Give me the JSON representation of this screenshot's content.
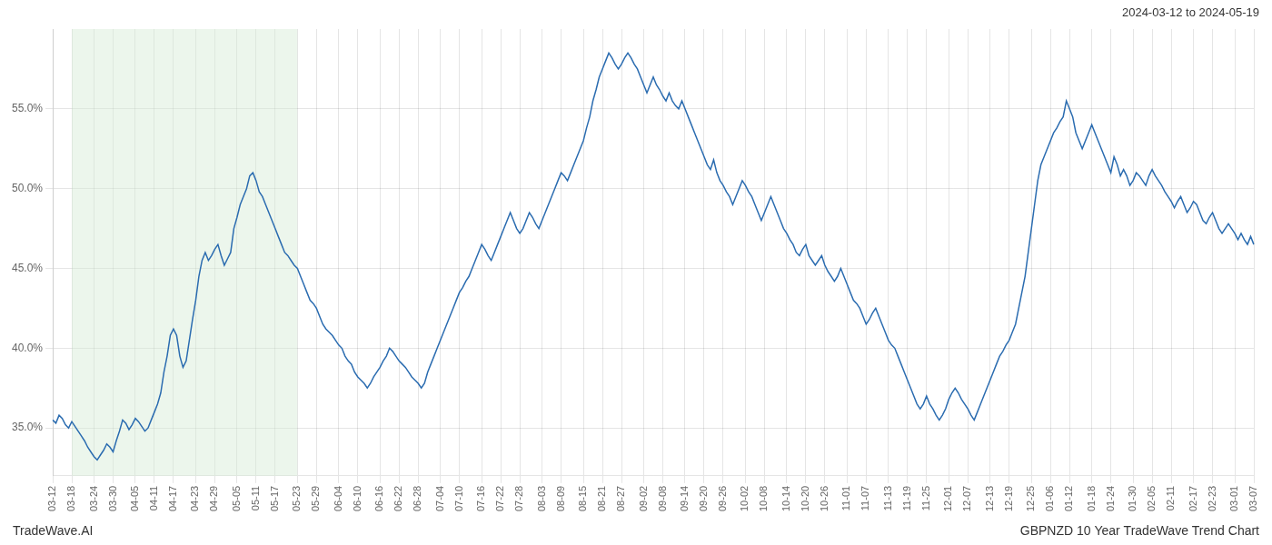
{
  "chart_data": {
    "type": "line",
    "title": "GBPNZD 10 Year TradeWave Trend Chart",
    "subtitle": "2024-03-12 to 2024-05-19",
    "annotations": [
      "TradeWave.AI"
    ],
    "color": "#2b6cb0",
    "grid": true,
    "span": {
      "from": "03-18",
      "to": "05-23",
      "color": "#d4ead4"
    },
    "ylim": [
      32.0,
      60.0
    ],
    "yticks": [
      {
        "value": 35.0,
        "label": "35.0%"
      },
      {
        "value": 40.0,
        "label": "40.0%"
      },
      {
        "value": 45.0,
        "label": "45.0%"
      },
      {
        "value": 50.0,
        "label": "50.0%"
      },
      {
        "value": 55.0,
        "label": "55.0%"
      }
    ],
    "categories": [
      "03-12",
      null,
      null,
      null,
      null,
      null,
      "03-18",
      null,
      null,
      null,
      null,
      null,
      null,
      "03-24",
      null,
      null,
      null,
      null,
      null,
      "03-30",
      null,
      null,
      null,
      null,
      null,
      null,
      "04-05",
      null,
      null,
      null,
      null,
      null,
      "04-11",
      null,
      null,
      null,
      null,
      null,
      "04-17",
      null,
      null,
      null,
      null,
      null,
      null,
      "04-23",
      null,
      null,
      null,
      null,
      null,
      "04-29",
      null,
      null,
      null,
      null,
      null,
      null,
      "05-05",
      null,
      null,
      null,
      null,
      null,
      "05-11",
      null,
      null,
      null,
      null,
      null,
      "05-17",
      null,
      null,
      null,
      null,
      null,
      null,
      "05-23",
      null,
      null,
      null,
      null,
      null,
      "05-29",
      null,
      null,
      null,
      null,
      null,
      null,
      "06-04",
      null,
      null,
      null,
      null,
      null,
      "06-10",
      null,
      null,
      null,
      null,
      null,
      null,
      "06-16",
      null,
      null,
      null,
      null,
      null,
      "06-22",
      null,
      null,
      null,
      null,
      null,
      "06-28",
      null,
      null,
      null,
      null,
      null,
      null,
      "07-04",
      null,
      null,
      null,
      null,
      null,
      "07-10",
      null,
      null,
      null,
      null,
      null,
      null,
      "07-16",
      null,
      null,
      null,
      null,
      null,
      "07-22",
      null,
      null,
      null,
      null,
      null,
      "07-28",
      null,
      null,
      null,
      null,
      null,
      null,
      "08-03",
      null,
      null,
      null,
      null,
      null,
      "08-09",
      null,
      null,
      null,
      null,
      null,
      null,
      "08-15",
      null,
      null,
      null,
      null,
      null,
      "08-21",
      null,
      null,
      null,
      null,
      null,
      "08-27",
      null,
      null,
      null,
      null,
      null,
      null,
      "09-02",
      null,
      null,
      null,
      null,
      null,
      "09-08",
      null,
      null,
      null,
      null,
      null,
      null,
      "09-14",
      null,
      null,
      null,
      null,
      null,
      "09-20",
      null,
      null,
      null,
      null,
      null,
      "09-26",
      null,
      null,
      null,
      null,
      null,
      null,
      "10-02",
      null,
      null,
      null,
      null,
      null,
      "10-08",
      null,
      null,
      null,
      null,
      null,
      null,
      "10-14",
      null,
      null,
      null,
      null,
      null,
      "10-20",
      null,
      null,
      null,
      null,
      null,
      "10-26",
      null,
      null,
      null,
      null,
      null,
      null,
      "11-01",
      null,
      null,
      null,
      null,
      null,
      "11-07",
      null,
      null,
      null,
      null,
      null,
      null,
      "11-13",
      null,
      null,
      null,
      null,
      null,
      "11-19",
      null,
      null,
      null,
      null,
      null,
      "11-25",
      null,
      null,
      null,
      null,
      null,
      null,
      "12-01",
      null,
      null,
      null,
      null,
      null,
      "12-07",
      null,
      null,
      null,
      null,
      null,
      null,
      "12-13",
      null,
      null,
      null,
      null,
      null,
      "12-19",
      null,
      null,
      null,
      null,
      null,
      null,
      "12-25",
      null,
      null,
      null,
      null,
      null,
      "01-06",
      null,
      null,
      null,
      null,
      null,
      "01-12",
      null,
      null,
      null,
      null,
      null,
      null,
      "01-18",
      null,
      null,
      null,
      null,
      null,
      "01-24",
      null,
      null,
      null,
      null,
      null,
      null,
      "01-30",
      null,
      null,
      null,
      null,
      null,
      "02-05",
      null,
      null,
      null,
      null,
      null,
      "02-11",
      null,
      null,
      null,
      null,
      null,
      null,
      "02-17",
      null,
      null,
      null,
      null,
      null,
      "02-23",
      null,
      null,
      null,
      null,
      null,
      null,
      "03-01",
      null,
      null,
      null,
      null,
      null,
      "03-07"
    ],
    "values": [
      35.5,
      35.3,
      35.8,
      35.6,
      35.2,
      35.0,
      35.4,
      35.1,
      34.8,
      34.5,
      34.2,
      33.8,
      33.5,
      33.2,
      33.0,
      33.3,
      33.6,
      34.0,
      33.8,
      33.5,
      34.2,
      34.8,
      35.5,
      35.3,
      34.9,
      35.2,
      35.6,
      35.4,
      35.1,
      34.8,
      35.0,
      35.5,
      36.0,
      36.5,
      37.2,
      38.5,
      39.5,
      40.8,
      41.2,
      40.8,
      39.5,
      38.8,
      39.2,
      40.5,
      41.8,
      43.0,
      44.5,
      45.5,
      46.0,
      45.5,
      45.8,
      46.2,
      46.5,
      45.8,
      45.2,
      45.6,
      46.0,
      47.5,
      48.2,
      49.0,
      49.5,
      50.0,
      50.8,
      51.0,
      50.5,
      49.8,
      49.5,
      49.0,
      48.5,
      48.0,
      47.5,
      47.0,
      46.5,
      46.0,
      45.8,
      45.5,
      45.2,
      45.0,
      44.5,
      44.0,
      43.5,
      43.0,
      42.8,
      42.5,
      42.0,
      41.5,
      41.2,
      41.0,
      40.8,
      40.5,
      40.2,
      40.0,
      39.5,
      39.2,
      39.0,
      38.5,
      38.2,
      38.0,
      37.8,
      37.5,
      37.8,
      38.2,
      38.5,
      38.8,
      39.2,
      39.5,
      40.0,
      39.8,
      39.5,
      39.2,
      39.0,
      38.8,
      38.5,
      38.2,
      38.0,
      37.8,
      37.5,
      37.8,
      38.5,
      39.0,
      39.5,
      40.0,
      40.5,
      41.0,
      41.5,
      42.0,
      42.5,
      43.0,
      43.5,
      43.8,
      44.2,
      44.5,
      45.0,
      45.5,
      46.0,
      46.5,
      46.2,
      45.8,
      45.5,
      46.0,
      46.5,
      47.0,
      47.5,
      48.0,
      48.5,
      48.0,
      47.5,
      47.2,
      47.5,
      48.0,
      48.5,
      48.2,
      47.8,
      47.5,
      48.0,
      48.5,
      49.0,
      49.5,
      50.0,
      50.5,
      51.0,
      50.8,
      50.5,
      51.0,
      51.5,
      52.0,
      52.5,
      53.0,
      53.8,
      54.5,
      55.5,
      56.2,
      57.0,
      57.5,
      58.0,
      58.5,
      58.2,
      57.8,
      57.5,
      57.8,
      58.2,
      58.5,
      58.2,
      57.8,
      57.5,
      57.0,
      56.5,
      56.0,
      56.5,
      57.0,
      56.5,
      56.2,
      55.8,
      55.5,
      56.0,
      55.5,
      55.2,
      55.0,
      55.5,
      55.0,
      54.5,
      54.0,
      53.5,
      53.0,
      52.5,
      52.0,
      51.5,
      51.2,
      51.8,
      51.0,
      50.5,
      50.2,
      49.8,
      49.5,
      49.0,
      49.5,
      50.0,
      50.5,
      50.2,
      49.8,
      49.5,
      49.0,
      48.5,
      48.0,
      48.5,
      49.0,
      49.5,
      49.0,
      48.5,
      48.0,
      47.5,
      47.2,
      46.8,
      46.5,
      46.0,
      45.8,
      46.2,
      46.5,
      45.8,
      45.5,
      45.2,
      45.5,
      45.8,
      45.2,
      44.8,
      44.5,
      44.2,
      44.5,
      45.0,
      44.5,
      44.0,
      43.5,
      43.0,
      42.8,
      42.5,
      42.0,
      41.5,
      41.8,
      42.2,
      42.5,
      42.0,
      41.5,
      41.0,
      40.5,
      40.2,
      40.0,
      39.5,
      39.0,
      38.5,
      38.0,
      37.5,
      37.0,
      36.5,
      36.2,
      36.5,
      37.0,
      36.5,
      36.2,
      35.8,
      35.5,
      35.8,
      36.2,
      36.8,
      37.2,
      37.5,
      37.2,
      36.8,
      36.5,
      36.2,
      35.8,
      35.5,
      36.0,
      36.5,
      37.0,
      37.5,
      38.0,
      38.5,
      39.0,
      39.5,
      39.8,
      40.2,
      40.5,
      41.0,
      41.5,
      42.5,
      43.5,
      44.5,
      46.0,
      47.5,
      49.0,
      50.5,
      51.5,
      52.0,
      52.5,
      53.0,
      53.5,
      53.8,
      54.2,
      54.5,
      55.5,
      55.0,
      54.5,
      53.5,
      53.0,
      52.5,
      53.0,
      53.5,
      54.0,
      53.5,
      53.0,
      52.5,
      52.0,
      51.5,
      51.0,
      52.0,
      51.5,
      50.8,
      51.2,
      50.8,
      50.2,
      50.5,
      51.0,
      50.8,
      50.5,
      50.2,
      50.8,
      51.2,
      50.8,
      50.5,
      50.2,
      49.8,
      49.5,
      49.2,
      48.8,
      49.2,
      49.5,
      49.0,
      48.5,
      48.8,
      49.2,
      49.0,
      48.5,
      48.0,
      47.8,
      48.2,
      48.5,
      48.0,
      47.5,
      47.2,
      47.5,
      47.8,
      47.5,
      47.2,
      46.8,
      47.2,
      46.8,
      46.5,
      47.0,
      46.5
    ]
  }
}
